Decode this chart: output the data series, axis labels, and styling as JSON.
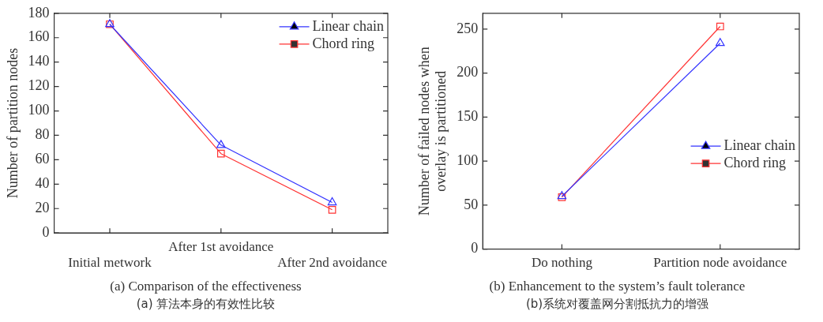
{
  "chart_data": [
    {
      "type": "line",
      "title": "(a) Comparison of the effectiveness",
      "subtitle": "(a)  算法本身的有效性比较",
      "ylabel": "Number of partition nodes",
      "categories": [
        "Initial metwork",
        "After 1st avoidance",
        "After 2nd avoidance"
      ],
      "series": [
        {
          "name": "Linear chain",
          "color": "#3333ff",
          "marker": "triangle",
          "values": [
            171,
            72,
            25
          ]
        },
        {
          "name": "Chord ring",
          "color": "#ff3333",
          "marker": "square",
          "values": [
            171,
            65,
            19
          ]
        }
      ],
      "ylim": [
        0,
        180
      ],
      "yticks": [
        0,
        20,
        40,
        60,
        80,
        100,
        120,
        140,
        160,
        180
      ],
      "grid": false,
      "legend": "top right"
    },
    {
      "type": "line",
      "title": "(b) Enhancement to the system’s fault tolerance",
      "subtitle": "(b)系统对覆盖网分割抵抗力的增强",
      "ylabel": "Number of failed nodes when\noverlay is partitioned",
      "categories": [
        "Do nothing",
        "Partition node avoidance"
      ],
      "series": [
        {
          "name": "Linear chain",
          "color": "#3333ff",
          "marker": "triangle",
          "values": [
            60,
            234
          ]
        },
        {
          "name": "Chord ring",
          "color": "#ff3333",
          "marker": "square",
          "values": [
            59,
            253
          ]
        }
      ],
      "ylim": [
        0,
        268
      ],
      "yticks": [
        0,
        50,
        100,
        150,
        200,
        250
      ],
      "grid": false,
      "legend": "right"
    }
  ]
}
